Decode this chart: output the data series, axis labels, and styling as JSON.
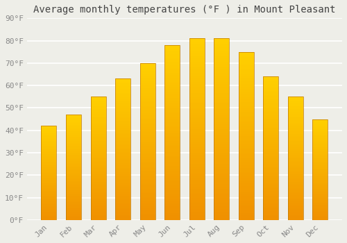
{
  "title": "Average monthly temperatures (°F ) in Mount Pleasant",
  "months": [
    "Jan",
    "Feb",
    "Mar",
    "Apr",
    "May",
    "Jun",
    "Jul",
    "Aug",
    "Sep",
    "Oct",
    "Nov",
    "Dec"
  ],
  "values": [
    42,
    47,
    55,
    63,
    70,
    78,
    81,
    81,
    75,
    64,
    55,
    45
  ],
  "bar_color_top": "#FFD000",
  "bar_color_bottom": "#F09000",
  "bar_edge_color": "#C07800",
  "ylim": [
    0,
    90
  ],
  "yticks": [
    0,
    10,
    20,
    30,
    40,
    50,
    60,
    70,
    80,
    90
  ],
  "ytick_labels": [
    "0°F",
    "10°F",
    "20°F",
    "30°F",
    "40°F",
    "50°F",
    "60°F",
    "70°F",
    "80°F",
    "90°F"
  ],
  "background_color": "#EEEEE8",
  "grid_color": "#FFFFFF",
  "title_fontsize": 10,
  "tick_fontsize": 8,
  "tick_color": "#888888",
  "title_color": "#444444"
}
